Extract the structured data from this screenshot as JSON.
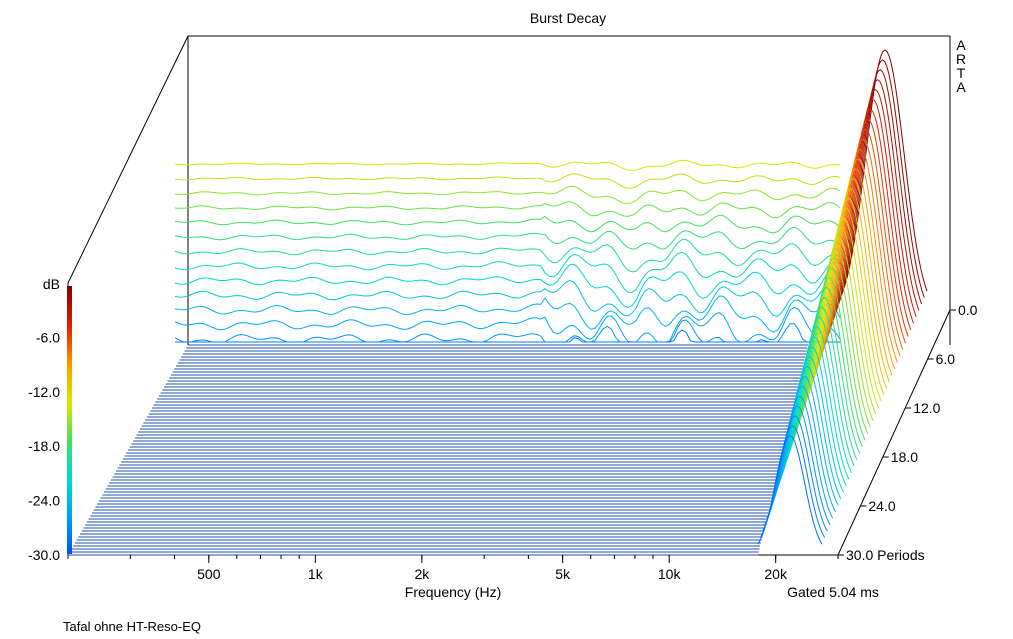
{
  "chart_data": {
    "type": "waterfall",
    "title": "Burst Decay",
    "xlabel": "Frequency (Hz)",
    "zlabel": "dB",
    "x_ticks": [
      "500",
      "1k",
      "2k",
      "5k",
      "10k",
      "20k"
    ],
    "x_tick_values": [
      500,
      1000,
      2000,
      5000,
      10000,
      20000
    ],
    "xlim": [
      200,
      30000
    ],
    "x_scale": "log",
    "z_ticks": [
      "-6.0",
      "-12.0",
      "-18.0",
      "-24.0",
      "-30.0"
    ],
    "z_tick_values": [
      -6,
      -12,
      -18,
      -24,
      -30
    ],
    "zlim": [
      -30,
      0
    ],
    "depth_ticks": [
      "0.0",
      "6.0",
      "12.0",
      "18.0",
      "24.0",
      "30.0 Periods"
    ],
    "depth_tick_values": [
      0,
      6,
      12,
      18,
      24,
      30
    ],
    "depth_unit": "Periods",
    "colorbar": [
      "#0050ff",
      "#00a0ff",
      "#00d8d0",
      "#40e060",
      "#d8e800",
      "#ffa000",
      "#e02000",
      "#800000"
    ],
    "slices": [
      {
        "period": 0,
        "frequency": [
          200,
          300,
          500,
          800,
          1000,
          1500,
          2000,
          3000,
          4000,
          5000,
          6000,
          7000,
          8000,
          9000,
          10000,
          12000,
          14000,
          16000,
          20000,
          25000,
          30000
        ],
        "db": [
          -1,
          -1,
          -1,
          -1,
          -1,
          -1,
          -1,
          -0.8,
          -0.8,
          -0.9,
          -2,
          -3,
          -1.5,
          -0.8,
          -1,
          -1.5,
          -1.2,
          -1.8,
          -1.2,
          -1.5,
          -1.3
        ]
      }
    ]
  },
  "labels": {
    "brand": "ARTA",
    "gated": "Gated 5.04 ms",
    "footer": "Tafal ohne HT-Reso-EQ"
  }
}
